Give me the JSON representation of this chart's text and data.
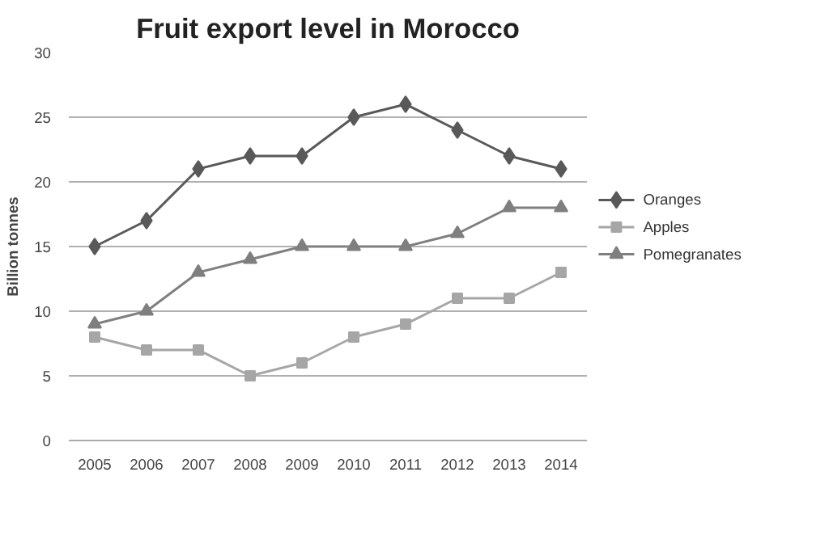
{
  "chart_data": {
    "type": "line",
    "title": "Fruit export level in Morocco",
    "ylabel": "Billion tonnes",
    "categories": [
      "2005",
      "2006",
      "2007",
      "2008",
      "2009",
      "2010",
      "2011",
      "2012",
      "2013",
      "2014"
    ],
    "series": [
      {
        "name": "Oranges",
        "color": "#595959",
        "marker": "diamond",
        "values": [
          15,
          17,
          21,
          22,
          22,
          25,
          26,
          24,
          22,
          21
        ]
      },
      {
        "name": "Apples",
        "color": "#a6a6a6",
        "marker": "square",
        "values": [
          8,
          7,
          7,
          5,
          6,
          8,
          9,
          11,
          11,
          13
        ]
      },
      {
        "name": "Pomegranates",
        "color": "#7f7f7f",
        "marker": "triangle",
        "values": [
          9,
          10,
          13,
          14,
          15,
          15,
          15,
          16,
          18,
          18
        ]
      }
    ],
    "ylim": [
      0,
      30
    ],
    "yticks": [
      0,
      5,
      10,
      15,
      20,
      25,
      30
    ],
    "grid": "y",
    "legend": "right",
    "line_style": "solid"
  }
}
